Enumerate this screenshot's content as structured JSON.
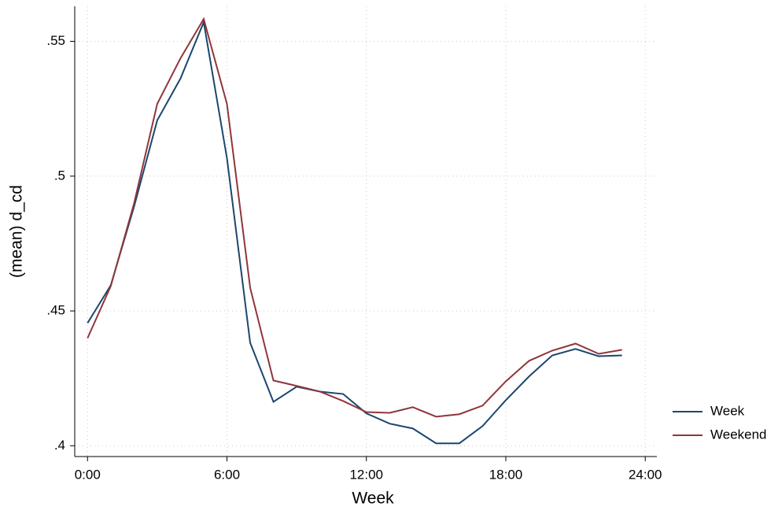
{
  "chart_data": {
    "type": "line",
    "xlabel": "Week",
    "ylabel": "(mean) d_cd",
    "x": [
      0,
      1,
      2,
      3,
      4,
      5,
      6,
      7,
      8,
      9,
      10,
      11,
      12,
      13,
      14,
      15,
      16,
      17,
      18,
      19,
      20,
      21,
      22,
      23
    ],
    "series": [
      {
        "name": "Week",
        "color": "#1a476f",
        "values": [
          0.4455,
          0.4595,
          0.4886,
          0.5207,
          0.5362,
          0.5571,
          0.5067,
          0.4382,
          0.4163,
          0.4219,
          0.4201,
          0.4192,
          0.412,
          0.4082,
          0.4064,
          0.4009,
          0.4009,
          0.4073,
          0.4169,
          0.4257,
          0.4335,
          0.4359,
          0.4332,
          0.4335
        ]
      },
      {
        "name": "Weekend",
        "color": "#90353b",
        "values": [
          0.4399,
          0.4592,
          0.4898,
          0.5268,
          0.5437,
          0.5583,
          0.5268,
          0.4586,
          0.4242,
          0.4222,
          0.4201,
          0.4166,
          0.4125,
          0.4122,
          0.4143,
          0.4108,
          0.4117,
          0.4149,
          0.4239,
          0.4315,
          0.4353,
          0.4379,
          0.4341,
          0.4356
        ]
      }
    ],
    "xlim": [
      -0.55,
      24.5
    ],
    "xticks": [
      {
        "value": 0,
        "label": "0:00"
      },
      {
        "value": 6,
        "label": "6:00"
      },
      {
        "value": 12,
        "label": "12:00"
      },
      {
        "value": 18,
        "label": "18:00"
      },
      {
        "value": 24,
        "label": "24:00"
      }
    ],
    "ylim": [
      0.396,
      0.563
    ],
    "yticks": [
      {
        "value": 0.4,
        "label": ".4"
      },
      {
        "value": 0.45,
        "label": ".45"
      },
      {
        "value": 0.5,
        "label": ".5"
      },
      {
        "value": 0.55,
        "label": ".55"
      }
    ],
    "grid": true,
    "legend": "right"
  }
}
